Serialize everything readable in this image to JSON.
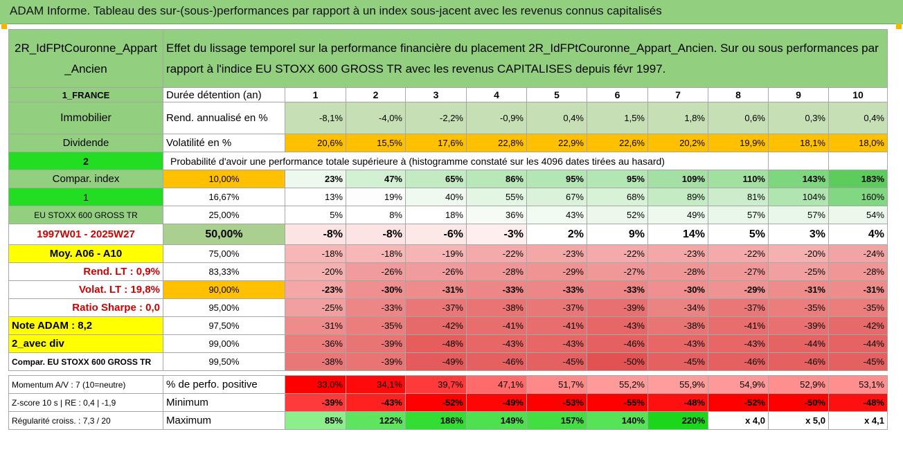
{
  "title": "ADAM Informe. Tableau des sur-(sous-)performances par rapport à un index sous-jacent avec les revenus connus capitalisés",
  "header": {
    "asset_name": "2R_IdFPtCouronne_Appart_Ancien",
    "description": "Effet du lissage temporel sur la performance financière du placement 2R_IdFPtCouronne_Appart_Ancien. Sur ou sous performances par rapport à l'indice EU STOXX 600 GROSS TR avec les revenus CAPITALISES depuis févr 1997."
  },
  "side": {
    "country": "1_FRANCE",
    "category": "Immobilier",
    "sub_category": "Dividende",
    "box_2": "2",
    "compar_index": "Compar. index",
    "box_1": "1",
    "index_name": "EU STOXX 600 GROSS TR",
    "period": "1997W01 - 2025W27",
    "moy": "Moy. A06 - A10",
    "rend_lt": "Rend. LT :   0,9%",
    "volat_lt": "Volat. LT :   19,8%",
    "sharpe": "Ratio Sharpe :   0,0",
    "note": "Note ADAM : 8,2",
    "div": "2_avec div",
    "compar_full": "Compar. EU STOXX 600 GROSS TR",
    "momentum": "Momentum A/V : 7 (10=neutre)",
    "zscore": "Z-score 10 s | RE : 0,4 | -1,9",
    "regularite": "Régularité croiss. : 7,3 / 20"
  },
  "rows_top": {
    "duration_label": "Durée détention (an)",
    "durations": [
      "1",
      "2",
      "3",
      "4",
      "5",
      "6",
      "7",
      "8",
      "9",
      "10"
    ],
    "rend_label": "Rend. annualisé en %",
    "rend": [
      "-8,1%",
      "-4,0%",
      "-2,2%",
      "-0,9%",
      "0,4%",
      "1,5%",
      "1,8%",
      "0,6%",
      "0,3%",
      "0,4%"
    ],
    "vol_label": "Volatilité en %",
    "vol": [
      "20,6%",
      "15,5%",
      "17,6%",
      "22,8%",
      "22,9%",
      "22,6%",
      "20,2%",
      "19,9%",
      "18,1%",
      "18,0%"
    ],
    "prob_label": "Probabilité d'avoir une performance totale supérieure à (histogramme constaté sur les 4096 dates tirées au hasard)"
  },
  "percentile_rows": [
    {
      "p": "10,00%",
      "vals": [
        "23%",
        "47%",
        "65%",
        "86%",
        "95%",
        "95%",
        "109%",
        "110%",
        "143%",
        "183%"
      ]
    },
    {
      "p": "16,67%",
      "vals": [
        "13%",
        "19%",
        "40%",
        "55%",
        "67%",
        "68%",
        "89%",
        "81%",
        "104%",
        "160%"
      ]
    },
    {
      "p": "25,00%",
      "vals": [
        "5%",
        "8%",
        "18%",
        "36%",
        "43%",
        "52%",
        "49%",
        "57%",
        "57%",
        "54%"
      ]
    },
    {
      "p": "50,00%",
      "vals": [
        "-8%",
        "-8%",
        "-6%",
        "-3%",
        "2%",
        "9%",
        "14%",
        "5%",
        "3%",
        "4%"
      ]
    },
    {
      "p": "75,00%",
      "vals": [
        "-18%",
        "-18%",
        "-19%",
        "-22%",
        "-23%",
        "-22%",
        "-23%",
        "-22%",
        "-20%",
        "-24%"
      ]
    },
    {
      "p": "83,33%",
      "vals": [
        "-20%",
        "-26%",
        "-26%",
        "-28%",
        "-29%",
        "-27%",
        "-28%",
        "-27%",
        "-25%",
        "-28%"
      ]
    },
    {
      "p": "90,00%",
      "vals": [
        "-23%",
        "-30%",
        "-31%",
        "-33%",
        "-33%",
        "-33%",
        "-30%",
        "-29%",
        "-31%",
        "-31%"
      ]
    },
    {
      "p": "95,00%",
      "vals": [
        "-25%",
        "-33%",
        "-37%",
        "-38%",
        "-37%",
        "-39%",
        "-34%",
        "-37%",
        "-35%",
        "-35%"
      ]
    },
    {
      "p": "97,50%",
      "vals": [
        "-31%",
        "-35%",
        "-42%",
        "-41%",
        "-41%",
        "-43%",
        "-38%",
        "-41%",
        "-39%",
        "-42%"
      ]
    },
    {
      "p": "99,00%",
      "vals": [
        "-36%",
        "-39%",
        "-48%",
        "-43%",
        "-43%",
        "-46%",
        "-43%",
        "-43%",
        "-44%",
        "-44%"
      ]
    },
    {
      "p": "99,50%",
      "vals": [
        "-38%",
        "-39%",
        "-49%",
        "-46%",
        "-45%",
        "-50%",
        "-45%",
        "-46%",
        "-46%",
        "-45%"
      ]
    }
  ],
  "bottom": {
    "pos_label": "% de perfo. positive",
    "pos": [
      "33,0%",
      "34,1%",
      "39,7%",
      "47,1%",
      "51,7%",
      "55,2%",
      "55,9%",
      "54,9%",
      "52,9%",
      "53,1%"
    ],
    "min_label": "Minimum",
    "min": [
      "-39%",
      "-43%",
      "-52%",
      "-49%",
      "-53%",
      "-55%",
      "-48%",
      "-52%",
      "-50%",
      "-48%"
    ],
    "max_label": "Maximum",
    "max": [
      "85%",
      "122%",
      "186%",
      "149%",
      "157%",
      "140%",
      "220%",
      "x 4,0",
      "x 5,0",
      "x 4,1"
    ]
  },
  "colors": {
    "rend": [
      "#c6dfb4",
      "#c6dfb4",
      "#c6dfb4",
      "#c6dfb4",
      "#c6dfb4",
      "#c6dfb4",
      "#c6dfb4",
      "#c6dfb4",
      "#c6dfb4",
      "#c6dfb4"
    ],
    "vol": "#ffc000",
    "percentile": [
      [
        "#eef9ee",
        "#d2f0d2",
        "#c3ebc3",
        "#b8e8b8",
        "#b3e6b3",
        "#b3e6b3",
        "#a4e0a4",
        "#a2e0a2",
        "#7ed67e",
        "#5ccc5c"
      ],
      [
        "#ffffff",
        "#fdfdfd",
        "#eff9ef",
        "#e3f5e3",
        "#daf2da",
        "#d8f2d8",
        "#c4ebc4",
        "#cbedcb",
        "#b0e4b0",
        "#82d782"
      ],
      [
        "#ffffff",
        "#ffffff",
        "#ffffff",
        "#f6fbf6",
        "#f1fbf1",
        "#ecf8ec",
        "#eef9ee",
        "#e9f7e9",
        "#e9f7e9",
        "#ecf8ec"
      ],
      [
        "#fde4e4",
        "#fde4e4",
        "#fde8e8",
        "#ffeeee",
        "#ffffff",
        "#ffffff",
        "#ffffff",
        "#ffffff",
        "#ffffff",
        "#ffffff"
      ],
      [
        "#f7b7b7",
        "#f7b7b7",
        "#f6b4b4",
        "#f4aaaa",
        "#f3a7a7",
        "#f4aaaa",
        "#f3a7a7",
        "#f4aaaa",
        "#f5b0b0",
        "#f2a3a3"
      ],
      [
        "#f5b0b0",
        "#f19c9c",
        "#f19c9c",
        "#f09696",
        "#ef9393",
        "#f09898",
        "#f09696",
        "#f09898",
        "#f1a0a0",
        "#f09696"
      ],
      [
        "#f3a7a7",
        "#ef8f8f",
        "#ee8c8c",
        "#ed8686",
        "#ed8686",
        "#ed8686",
        "#ef8f8f",
        "#ef9292",
        "#ee8c8c",
        "#ee8c8c"
      ],
      [
        "#f1a0a0",
        "#ed8686",
        "#ea7777",
        "#e97474",
        "#ea7777",
        "#e87070",
        "#ec8383",
        "#ea7777",
        "#eb7d7d",
        "#eb7d7d"
      ],
      [
        "#ee8c8c",
        "#eb7d7d",
        "#e76a6a",
        "#e86d6d",
        "#e86d6d",
        "#e76767",
        "#e97474",
        "#e86d6d",
        "#e87070",
        "#e76a6a"
      ],
      [
        "#eb7d7d",
        "#e97474",
        "#e55d5d",
        "#e76767",
        "#e76767",
        "#e56060",
        "#e76767",
        "#e76767",
        "#e66363",
        "#e66363"
      ],
      [
        "#ea7777",
        "#e97474",
        "#e55a5a",
        "#e56060",
        "#e56060",
        "#e35252",
        "#e56060",
        "#e56060",
        "#e56060",
        "#e56060"
      ]
    ],
    "pos": [
      "#ff0000",
      "#ff0a0a",
      "#ff3a3a",
      "#ff6a6a",
      "#ff8888",
      "#ff9a9a",
      "#ff9c9c",
      "#ff9898",
      "#ff8e8e",
      "#ff8f8f"
    ],
    "min": [
      "#ff3a3a",
      "#ff2020",
      "#ff0000",
      "#ff0606",
      "#ff0000",
      "#ff0000",
      "#ff1010",
      "#ff0000",
      "#ff0000",
      "#ff1010"
    ],
    "max": [
      "#8cef8c",
      "#5ee45e",
      "#33dd33",
      "#4ee04e",
      "#44de44",
      "#57e257",
      "#1bd61b",
      "#ffffff",
      "#ffffff",
      "#ffffff"
    ]
  }
}
